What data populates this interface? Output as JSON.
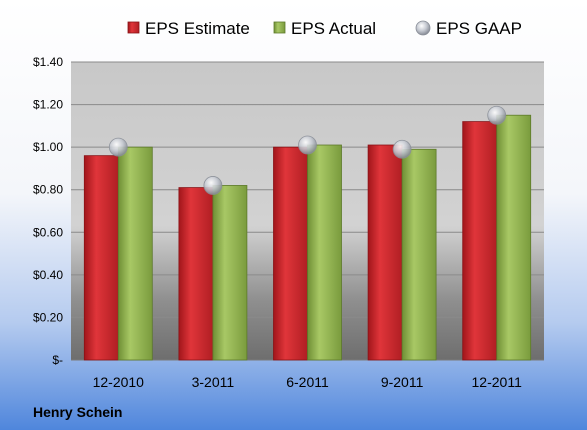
{
  "chart_data": {
    "type": "bar",
    "categories": [
      "12-2010",
      "3-2011",
      "6-2011",
      "9-2011",
      "12-2011"
    ],
    "series": [
      {
        "name": "EPS Estimate",
        "kind": "bar",
        "color": "#c0272d",
        "values": [
          0.96,
          0.81,
          1.0,
          1.01,
          1.12
        ]
      },
      {
        "name": "EPS Actual",
        "kind": "bar",
        "color": "#8bad4c",
        "values": [
          1.0,
          0.82,
          1.01,
          0.99,
          1.15
        ]
      },
      {
        "name": "EPS GAAP",
        "kind": "marker",
        "color": "#b8bcc4",
        "values": [
          1.0,
          0.82,
          1.01,
          0.99,
          1.15
        ]
      }
    ],
    "y_ticks": [
      {
        "value": 0,
        "label": "$-"
      },
      {
        "value": 0.2,
        "label": "$0.20"
      },
      {
        "value": 0.4,
        "label": "$0.40"
      },
      {
        "value": 0.6,
        "label": "$0.60"
      },
      {
        "value": 0.8,
        "label": "$0.80"
      },
      {
        "value": 1.0,
        "label": "$1.00"
      },
      {
        "value": 1.2,
        "label": "$1.20"
      },
      {
        "value": 1.4,
        "label": "$1.40"
      }
    ],
    "ylim": [
      0,
      1.4
    ],
    "grid": true,
    "legend_position": "top",
    "title": "",
    "xlabel": "",
    "ylabel": "",
    "footer_label": "Henry Schein"
  }
}
